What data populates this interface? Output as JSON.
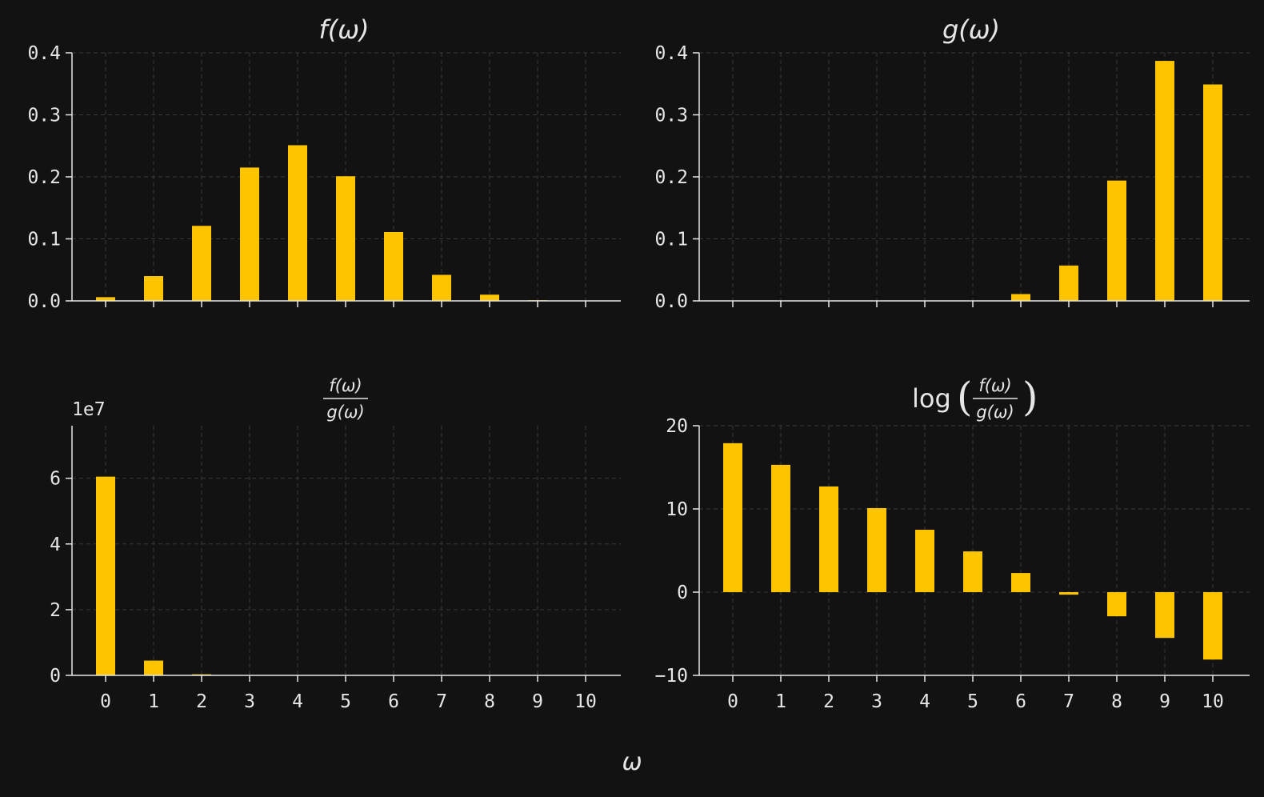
{
  "colors": {
    "background": "#121212",
    "bar": "#ffc400",
    "axis": "#e6e6e6",
    "grid": "#3a3a3a",
    "text": "#e6e6e6"
  },
  "xlabel": "ω",
  "chart_data": [
    {
      "type": "bar",
      "title": "f(ω)",
      "categories": [
        "0",
        "1",
        "2",
        "3",
        "4",
        "5",
        "6",
        "7",
        "8",
        "9",
        "10"
      ],
      "values": [
        0.006,
        0.04,
        0.121,
        0.215,
        0.251,
        0.201,
        0.111,
        0.042,
        0.01,
        0.001,
        0.0001
      ],
      "ylim": [
        0,
        0.4
      ],
      "yticks": [
        "0.0",
        "0.1",
        "0.2",
        "0.3",
        "0.4"
      ],
      "show_xtick_labels": false,
      "grid": true
    },
    {
      "type": "bar",
      "title": "g(ω)",
      "categories": [
        "0",
        "1",
        "2",
        "3",
        "4",
        "5",
        "6",
        "7",
        "8",
        "9",
        "10"
      ],
      "values": [
        0.0,
        0.0,
        0.0,
        0.0,
        0.0,
        0.0001,
        0.011,
        0.057,
        0.194,
        0.387,
        0.349
      ],
      "ylim": [
        0,
        0.4
      ],
      "yticks": [
        "0.0",
        "0.1",
        "0.2",
        "0.3",
        "0.4"
      ],
      "show_xtick_labels": false,
      "grid": true
    },
    {
      "type": "bar",
      "title_num": "f(ω)",
      "title_den": "g(ω)",
      "offset_label": "1e7",
      "categories": [
        "0",
        "1",
        "2",
        "3",
        "4",
        "5",
        "6",
        "7",
        "8",
        "9",
        "10"
      ],
      "values": [
        60500000,
        4500000,
        320000,
        22000,
        1800,
        130,
        10,
        0.7,
        0.05,
        0.004,
        0.0003
      ],
      "ylim": [
        0,
        76000000
      ],
      "yticks": [
        "0",
        "2",
        "4",
        "6"
      ],
      "ytick_values": [
        0,
        20000000,
        40000000,
        60000000
      ],
      "show_xtick_labels": true,
      "grid": true
    },
    {
      "type": "bar",
      "title_prefix": "log",
      "title_num": "f(ω)",
      "title_den": "g(ω)",
      "categories": [
        "0",
        "1",
        "2",
        "3",
        "4",
        "5",
        "6",
        "7",
        "8",
        "9",
        "10"
      ],
      "values": [
        17.9,
        15.3,
        12.7,
        10.1,
        7.5,
        4.9,
        2.3,
        -0.3,
        -2.9,
        -5.5,
        -8.1
      ],
      "ylim": [
        -10,
        20
      ],
      "yticks": [
        "−10",
        "0",
        "10",
        "20"
      ],
      "ytick_values": [
        -10,
        0,
        10,
        20
      ],
      "show_xtick_labels": true,
      "grid": true
    }
  ]
}
